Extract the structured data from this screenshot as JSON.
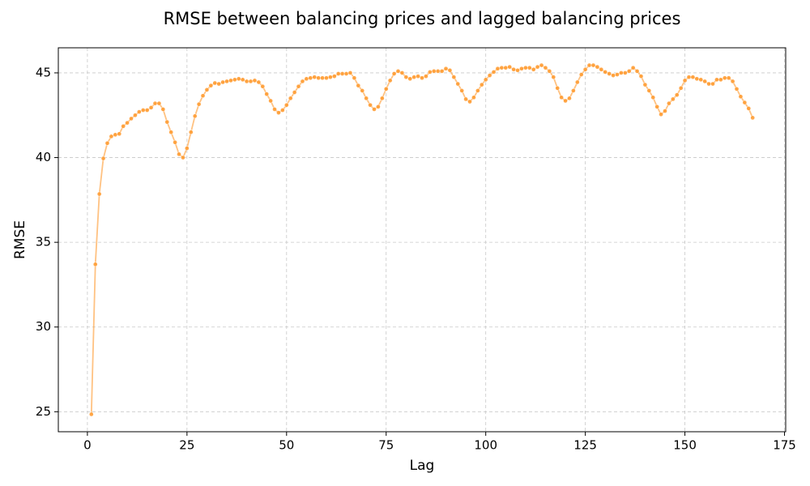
{
  "chart_data": {
    "type": "line",
    "title": "RMSE between balancing prices and lagged balancing prices",
    "x_label": "Lag",
    "y_label": "RMSE",
    "x": [
      1,
      2,
      3,
      4,
      5,
      6,
      7,
      8,
      9,
      10,
      11,
      12,
      13,
      14,
      15,
      16,
      17,
      18,
      19,
      20,
      21,
      22,
      23,
      24,
      25,
      26,
      27,
      28,
      29,
      30,
      31,
      32,
      33,
      34,
      35,
      36,
      37,
      38,
      39,
      40,
      41,
      42,
      43,
      44,
      45,
      46,
      47,
      48,
      49,
      50,
      51,
      52,
      53,
      54,
      55,
      56,
      57,
      58,
      59,
      60,
      61,
      62,
      63,
      64,
      65,
      66,
      67,
      68,
      69,
      70,
      71,
      72,
      73,
      74,
      75,
      76,
      77,
      78,
      79,
      80,
      81,
      82,
      83,
      84,
      85,
      86,
      87,
      88,
      89,
      90,
      91,
      92,
      93,
      94,
      95,
      96,
      97,
      98,
      99,
      100,
      101,
      102,
      103,
      104,
      105,
      106,
      107,
      108,
      109,
      110,
      111,
      112,
      113,
      114,
      115,
      116,
      117,
      118,
      119,
      120,
      121,
      122,
      123,
      124,
      125,
      126,
      127,
      128,
      129,
      130,
      131,
      132,
      133,
      134,
      135,
      136,
      137,
      138,
      139,
      140,
      141,
      142,
      143,
      144,
      145,
      146,
      147,
      148,
      149,
      150,
      151,
      152,
      153,
      154,
      155,
      156,
      157,
      158,
      159,
      160,
      161,
      162,
      163,
      164,
      165,
      166,
      167
    ],
    "values": [
      24.85,
      33.7,
      37.85,
      39.95,
      40.85,
      41.25,
      41.35,
      41.4,
      41.85,
      42.05,
      42.3,
      42.5,
      42.7,
      42.8,
      42.8,
      42.95,
      43.2,
      43.2,
      42.85,
      42.1,
      41.5,
      40.9,
      40.2,
      40.0,
      40.55,
      41.5,
      42.45,
      43.15,
      43.65,
      44.0,
      44.25,
      44.4,
      44.35,
      44.45,
      44.5,
      44.55,
      44.6,
      44.65,
      44.6,
      44.5,
      44.5,
      44.55,
      44.45,
      44.2,
      43.75,
      43.35,
      42.85,
      42.65,
      42.8,
      43.1,
      43.5,
      43.85,
      44.2,
      44.5,
      44.65,
      44.7,
      44.75,
      44.7,
      44.7,
      44.7,
      44.75,
      44.8,
      44.95,
      44.95,
      44.95,
      45.0,
      44.7,
      44.25,
      43.95,
      43.5,
      43.1,
      42.85,
      43.0,
      43.5,
      44.05,
      44.55,
      44.95,
      45.1,
      45.0,
      44.75,
      44.65,
      44.75,
      44.8,
      44.7,
      44.8,
      45.05,
      45.1,
      45.1,
      45.1,
      45.25,
      45.15,
      44.75,
      44.35,
      43.95,
      43.45,
      43.3,
      43.55,
      43.95,
      44.3,
      44.6,
      44.85,
      45.05,
      45.25,
      45.3,
      45.3,
      45.35,
      45.2,
      45.15,
      45.25,
      45.3,
      45.3,
      45.2,
      45.35,
      45.45,
      45.3,
      45.1,
      44.75,
      44.1,
      43.55,
      43.35,
      43.5,
      43.95,
      44.45,
      44.9,
      45.2,
      45.45,
      45.45,
      45.35,
      45.2,
      45.05,
      44.95,
      44.85,
      44.9,
      45.0,
      45.0,
      45.1,
      45.3,
      45.1,
      44.8,
      44.3,
      43.95,
      43.55,
      43.0,
      42.55,
      42.75,
      43.2,
      43.45,
      43.7,
      44.1,
      44.55,
      44.75,
      44.75,
      44.65,
      44.6,
      44.5,
      44.35,
      44.35,
      44.6,
      44.6,
      44.7,
      44.7,
      44.5,
      44.05,
      43.6,
      43.25,
      42.9,
      42.35
    ],
    "color": "#ff9a2e",
    "xlim": [
      -7.3,
      175.3
    ],
    "xticks": [
      0,
      25,
      50,
      75,
      100,
      125,
      150,
      175
    ],
    "ylim": [
      23.82,
      46.48
    ],
    "yticks": [
      25,
      30,
      35,
      40,
      45
    ],
    "grid": true
  }
}
